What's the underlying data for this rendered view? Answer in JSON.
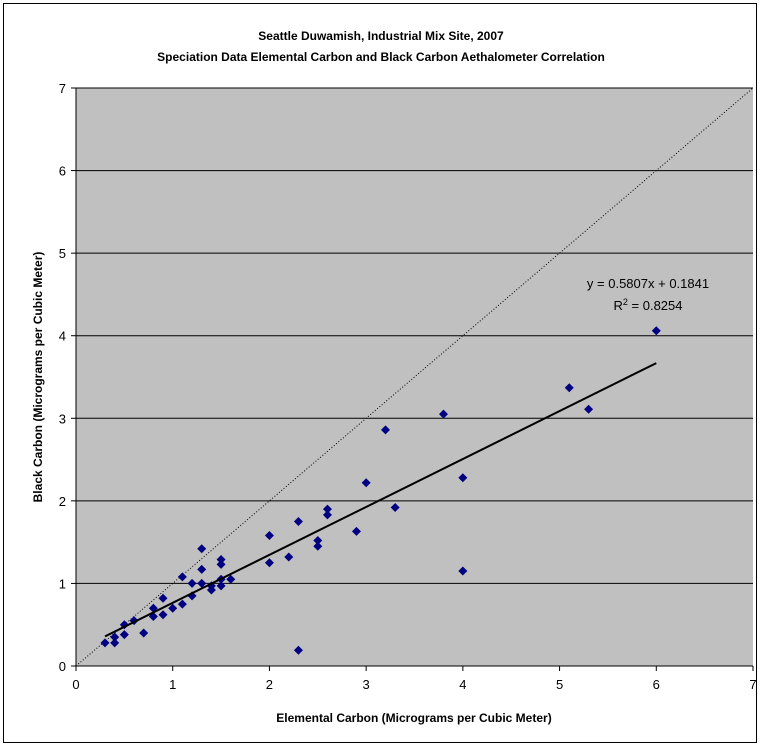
{
  "chart_data": {
    "type": "scatter",
    "title": "Seattle Duwamish, Industrial Mix Site, 2007",
    "subtitle": "Speciation Data Elemental Carbon and Black Carbon Aethalometer Correlation",
    "xlabel": "Elemental Carbon (Micrograms per Cubic Meter)",
    "ylabel": "Black Carbon (Micrograms per Cubic Meter)",
    "xlim": [
      0,
      7
    ],
    "ylim": [
      0,
      7
    ],
    "x_ticks": [
      "0",
      "1",
      "2",
      "3",
      "4",
      "5",
      "6",
      "7"
    ],
    "y_ticks": [
      "0",
      "1",
      "2",
      "3",
      "4",
      "5",
      "6",
      "7"
    ],
    "grid": "horizontal",
    "plot_background": "#c0c0c0",
    "marker_color": "#000080",
    "points": [
      [
        0.3,
        0.28
      ],
      [
        0.4,
        0.28
      ],
      [
        0.4,
        0.35
      ],
      [
        0.5,
        0.38
      ],
      [
        0.5,
        0.5
      ],
      [
        0.6,
        0.55
      ],
      [
        0.7,
        0.4
      ],
      [
        0.8,
        0.6
      ],
      [
        0.8,
        0.7
      ],
      [
        0.9,
        0.62
      ],
      [
        0.9,
        0.82
      ],
      [
        1.0,
        0.7
      ],
      [
        1.1,
        0.75
      ],
      [
        1.1,
        1.08
      ],
      [
        1.2,
        0.85
      ],
      [
        1.2,
        1.0
      ],
      [
        1.3,
        1.0
      ],
      [
        1.3,
        1.17
      ],
      [
        1.3,
        1.42
      ],
      [
        1.4,
        0.92
      ],
      [
        1.4,
        0.97
      ],
      [
        1.5,
        0.97
      ],
      [
        1.5,
        1.05
      ],
      [
        1.5,
        1.23
      ],
      [
        1.5,
        1.29
      ],
      [
        1.6,
        1.05
      ],
      [
        2.0,
        1.25
      ],
      [
        2.0,
        1.58
      ],
      [
        2.2,
        1.32
      ],
      [
        2.3,
        0.19
      ],
      [
        2.3,
        1.75
      ],
      [
        2.5,
        1.45
      ],
      [
        2.5,
        1.52
      ],
      [
        2.6,
        1.83
      ],
      [
        2.6,
        1.9
      ],
      [
        2.9,
        1.63
      ],
      [
        3.0,
        2.22
      ],
      [
        3.2,
        2.86
      ],
      [
        3.3,
        1.92
      ],
      [
        3.8,
        3.05
      ],
      [
        4.0,
        1.15
      ],
      [
        4.0,
        2.28
      ],
      [
        5.1,
        3.37
      ],
      [
        5.3,
        3.11
      ],
      [
        6.0,
        4.06
      ]
    ],
    "trendline": {
      "type": "linear",
      "slope": 0.5807,
      "intercept": 0.1841,
      "x_range": [
        0.3,
        6.0
      ],
      "equation_label": "y = 0.5807x + 0.1841",
      "r2_prefix": "R",
      "r2_exponent": "2",
      "r2_value": " = 0.8254"
    },
    "reference_line": {
      "type": "1:1",
      "style": "dotted",
      "from": [
        0,
        0
      ],
      "to": [
        7,
        7
      ]
    }
  }
}
